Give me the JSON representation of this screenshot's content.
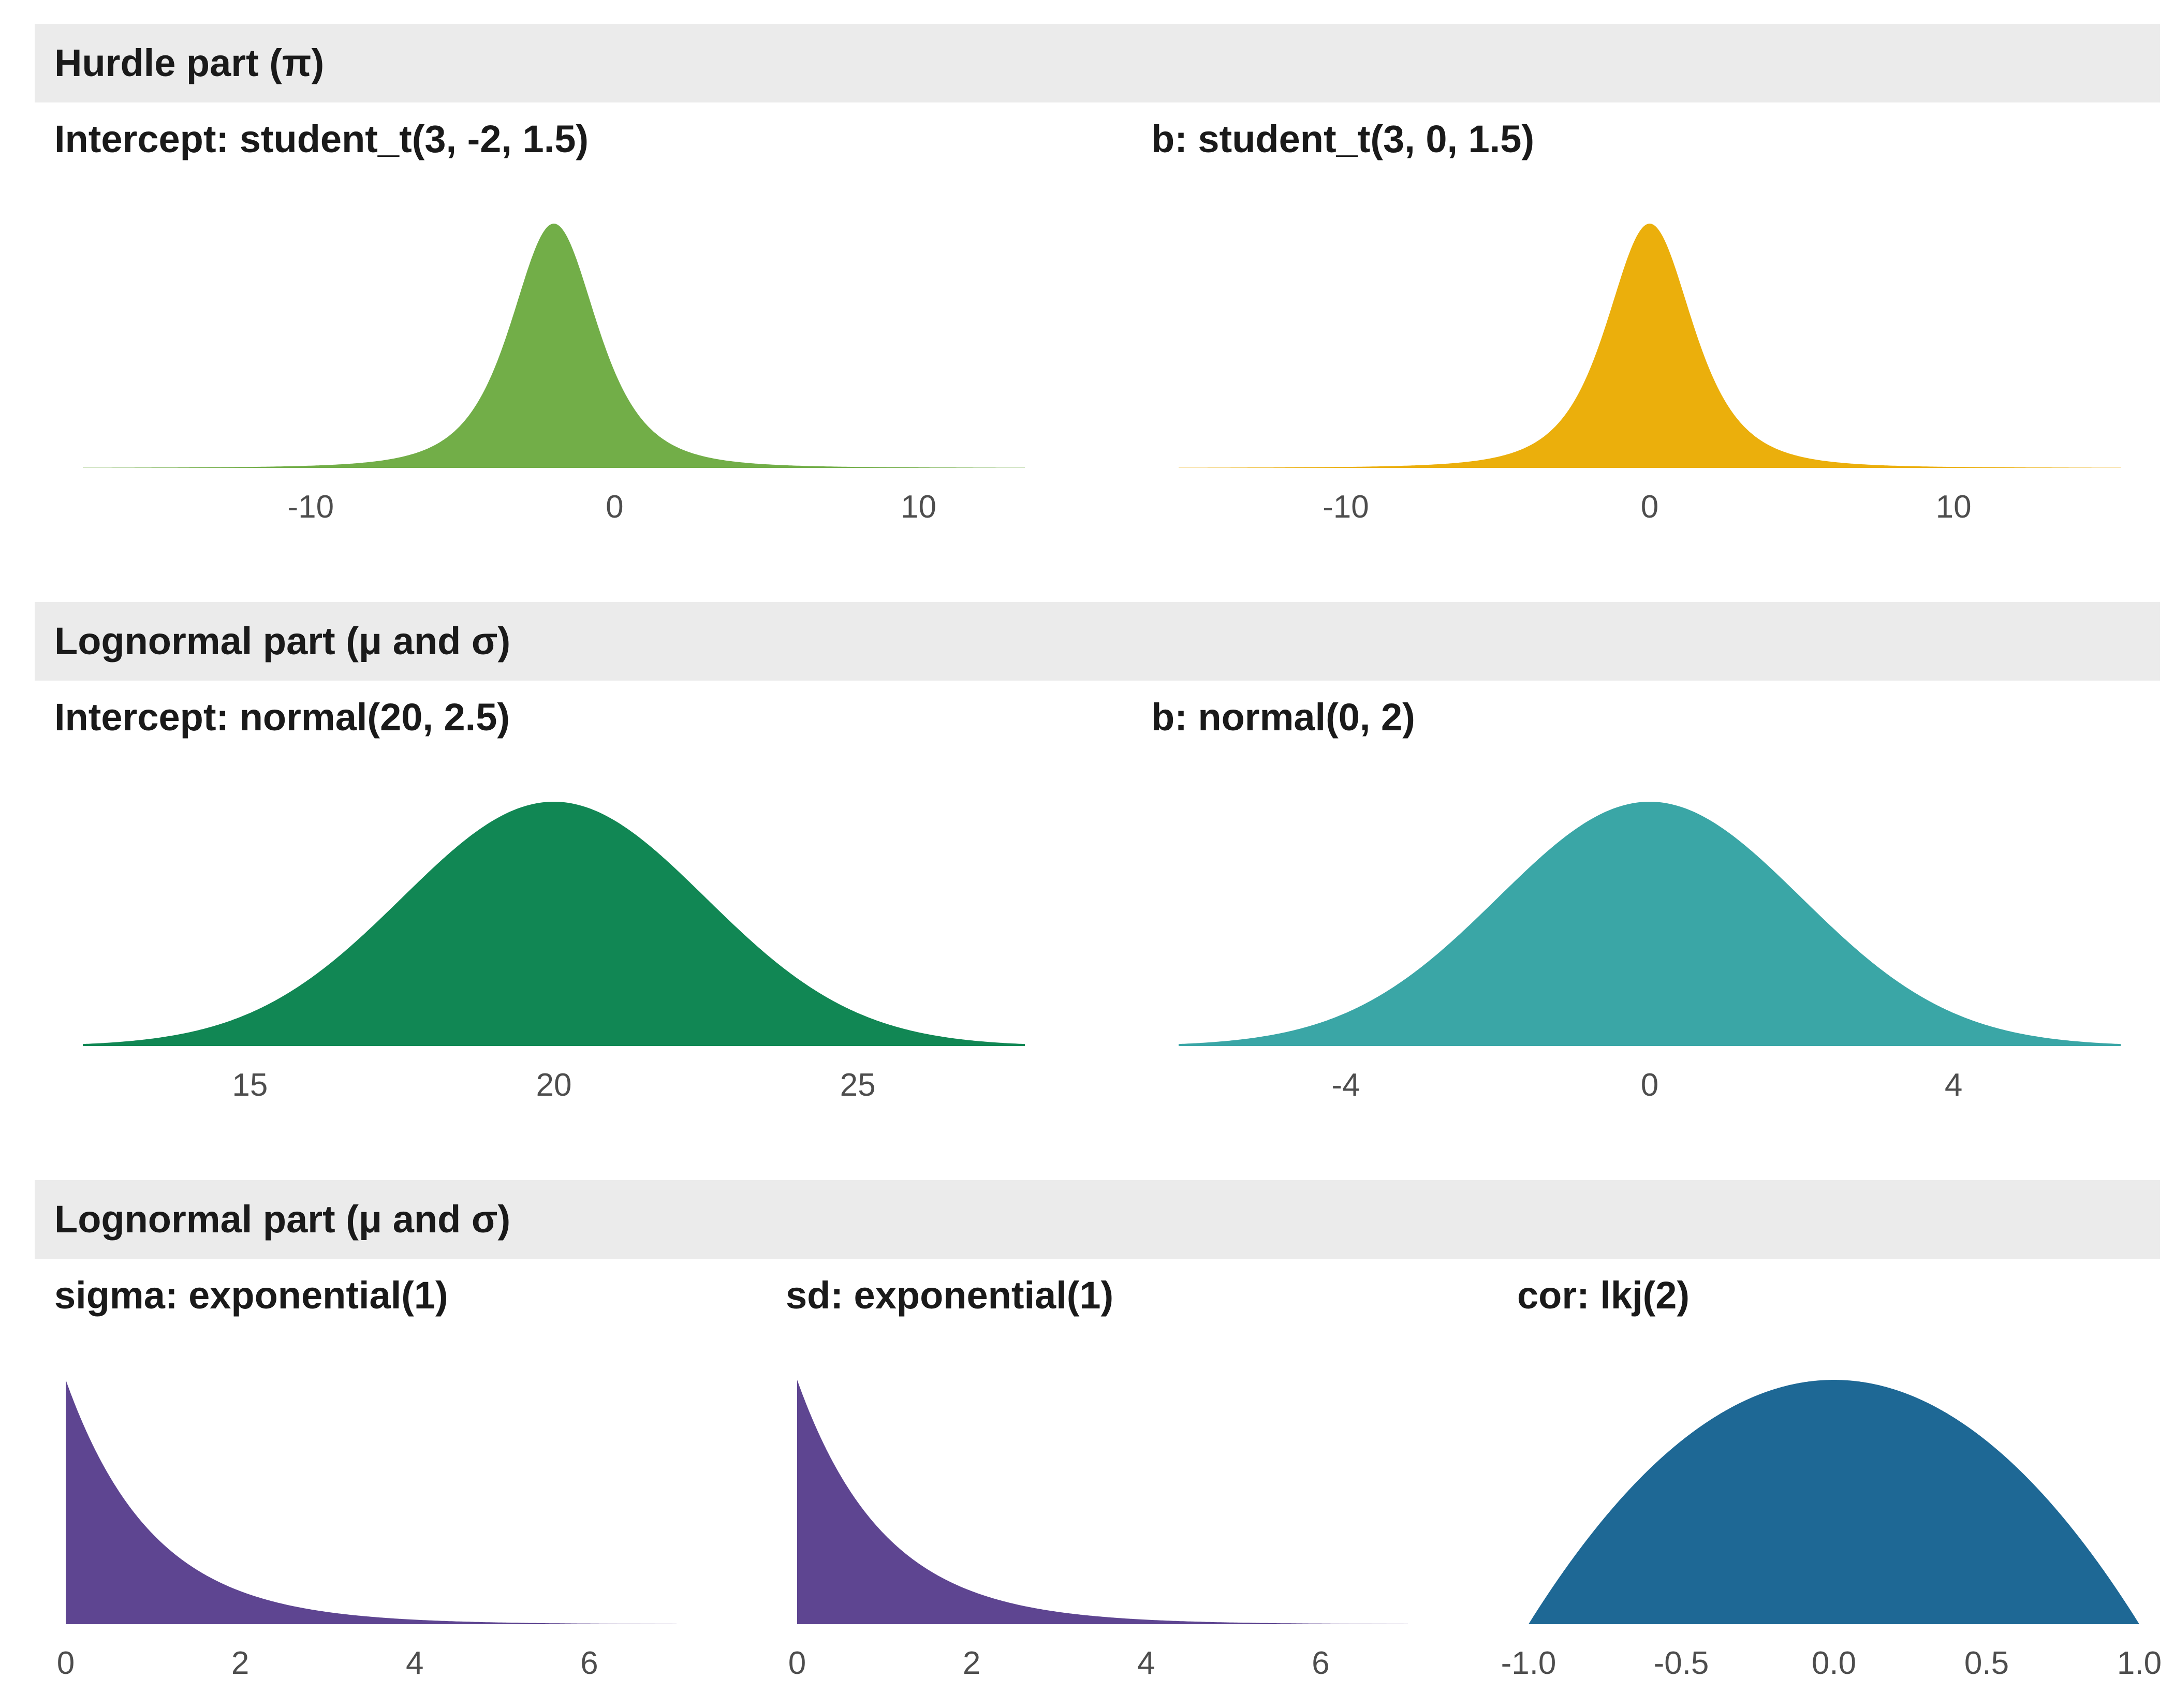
{
  "sections": [
    {
      "label": "Hurdle part (π)"
    },
    {
      "label": "Lognormal part (μ and σ)"
    },
    {
      "label": "Lognormal part (μ and σ)"
    }
  ],
  "chart_data": [
    {
      "type": "area",
      "title": "Intercept: student_t(3, -2, 1.5)",
      "distribution": {
        "family": "student_t",
        "df": 3,
        "location": -2,
        "scale": 1.5
      },
      "xlim": [
        -17.5,
        13.5
      ],
      "ticks": [
        -10,
        0,
        10
      ],
      "tick_labels": [
        "-10",
        "0",
        "10"
      ],
      "color": "#72AE48"
    },
    {
      "type": "area",
      "title": "b: student_t(3, 0, 1.5)",
      "distribution": {
        "family": "student_t",
        "df": 3,
        "location": 0,
        "scale": 1.5
      },
      "xlim": [
        -15.5,
        15.5
      ],
      "ticks": [
        -10,
        0,
        10
      ],
      "tick_labels": [
        "-10",
        "0",
        "10"
      ],
      "color": "#EBAF0C"
    },
    {
      "type": "area",
      "title": "Intercept: normal(20, 2.5)",
      "distribution": {
        "family": "normal",
        "mean": 20,
        "sd": 2.5
      },
      "xlim": [
        12.25,
        27.75
      ],
      "ticks": [
        15,
        20,
        25
      ],
      "tick_labels": [
        "15",
        "20",
        "25"
      ],
      "color": "#118754"
    },
    {
      "type": "area",
      "title": "b: normal(0, 2)",
      "distribution": {
        "family": "normal",
        "mean": 0,
        "sd": 2
      },
      "xlim": [
        -6.2,
        6.2
      ],
      "ticks": [
        -4,
        0,
        4
      ],
      "tick_labels": [
        "-4",
        "0",
        "4"
      ],
      "color": "#3AA6A6"
    },
    {
      "type": "area",
      "title": "sigma: exponential(1)",
      "distribution": {
        "family": "exponential",
        "rate": 1
      },
      "xlim": [
        0,
        7
      ],
      "ticks": [
        0,
        2,
        4,
        6
      ],
      "tick_labels": [
        "0",
        "2",
        "4",
        "6"
      ],
      "color": "#5E4591"
    },
    {
      "type": "area",
      "title": "sd: exponential(1)",
      "distribution": {
        "family": "exponential",
        "rate": 1
      },
      "xlim": [
        0,
        7
      ],
      "ticks": [
        0,
        2,
        4,
        6
      ],
      "tick_labels": [
        "0",
        "2",
        "4",
        "6"
      ],
      "color": "#5E4591"
    },
    {
      "type": "area",
      "title": "cor: lkj(2)",
      "distribution": {
        "family": "lkj",
        "eta": 2
      },
      "xlim": [
        -1,
        1
      ],
      "ticks": [
        -1,
        -0.5,
        0,
        0.5,
        1
      ],
      "tick_labels": [
        "-1.0",
        "-0.5",
        "0.0",
        "0.5",
        "1.0"
      ],
      "color": "#1E6895"
    }
  ]
}
